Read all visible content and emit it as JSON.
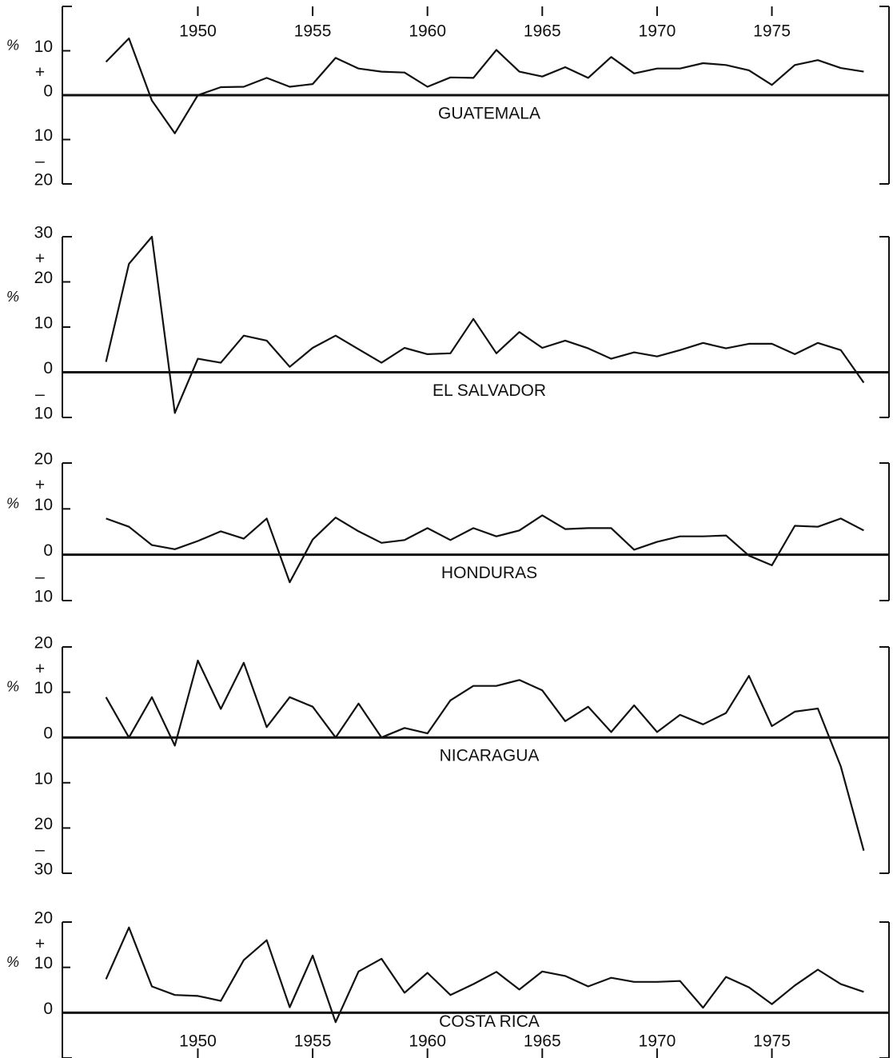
{
  "chart_data": [
    {
      "type": "line",
      "title": "GUATEMALA",
      "ylabel": "%",
      "sign_labels": [
        "+",
        "–"
      ],
      "xaxis_position": "top",
      "xlim": [
        1944.1,
        1980.1
      ],
      "xticks": [
        1950,
        1955,
        1960,
        1965,
        1970,
        1975
      ],
      "ylim": [
        -20,
        20
      ],
      "yticks": [
        {
          "value": -20,
          "label": "20"
        },
        {
          "value": -10,
          "label": "10"
        },
        0,
        10
      ],
      "x": [
        1946,
        1947,
        1948,
        1949,
        1950,
        1951,
        1952,
        1953,
        1954,
        1955,
        1956,
        1957,
        1958,
        1959,
        1960,
        1961,
        1962,
        1963,
        1964,
        1965,
        1966,
        1967,
        1968,
        1969,
        1970,
        1971,
        1972,
        1973,
        1974,
        1975,
        1976,
        1977,
        1978,
        1979
      ],
      "series": [
        {
          "color": "#111111",
          "values": [
            7.5,
            12.8,
            -1.2,
            -8.6,
            0,
            1.8,
            1.9,
            3.9,
            1.9,
            2.5,
            8.4,
            6,
            5.3,
            5.1,
            1.9,
            4,
            3.9,
            10.2,
            5.3,
            4.2,
            6.3,
            3.9,
            8.6,
            4.9,
            6,
            6,
            7.2,
            6.8,
            5.6,
            2.3,
            6.8,
            7.9,
            6.1,
            5.3
          ]
        }
      ]
    },
    {
      "type": "line",
      "title": "EL SALVADOR",
      "ylabel": "%",
      "sign_labels": [
        "+",
        "–"
      ],
      "xlim": [
        1944.1,
        1980.1
      ],
      "ylim": [
        -10,
        30
      ],
      "yticks": [
        {
          "value": -10,
          "label": "10"
        },
        0,
        10,
        20,
        30
      ],
      "x": [
        1946,
        1947,
        1948,
        1949,
        1950,
        1951,
        1952,
        1953,
        1954,
        1955,
        1956,
        1957,
        1958,
        1959,
        1960,
        1961,
        1962,
        1963,
        1964,
        1965,
        1966,
        1967,
        1968,
        1969,
        1970,
        1971,
        1972,
        1973,
        1974,
        1975,
        1976,
        1977,
        1978,
        1979
      ],
      "series": [
        {
          "color": "#111111",
          "values": [
            2.3,
            24,
            30,
            -9,
            3,
            2.1,
            8.1,
            7,
            1.2,
            5.4,
            8.1,
            5.1,
            2.1,
            5.4,
            4,
            4.2,
            11.8,
            4.2,
            8.9,
            5.4,
            7,
            5.3,
            3,
            4.4,
            3.5,
            4.9,
            6.5,
            5.3,
            6.3,
            6.3,
            4,
            6.5,
            4.9,
            -2.3
          ]
        }
      ]
    },
    {
      "type": "line",
      "title": "HONDURAS",
      "ylabel": "%",
      "sign_labels": [
        "+",
        "–"
      ],
      "xlim": [
        1944.1,
        1980.1
      ],
      "ylim": [
        -10,
        20
      ],
      "yticks": [
        {
          "value": -10,
          "label": "10"
        },
        0,
        10,
        20
      ],
      "x": [
        1946,
        1947,
        1948,
        1949,
        1950,
        1951,
        1952,
        1953,
        1954,
        1955,
        1956,
        1957,
        1958,
        1959,
        1960,
        1961,
        1962,
        1963,
        1964,
        1965,
        1966,
        1967,
        1968,
        1969,
        1970,
        1971,
        1972,
        1973,
        1974,
        1975,
        1976,
        1977,
        1978,
        1979
      ],
      "series": [
        {
          "color": "#111111",
          "values": [
            7.9,
            6.1,
            2.1,
            1.2,
            3,
            5.1,
            3.5,
            7.9,
            -6,
            3.3,
            8.1,
            5.1,
            2.6,
            3.2,
            5.8,
            3.2,
            5.8,
            4,
            5.3,
            8.6,
            5.6,
            5.8,
            5.8,
            1.1,
            2.8,
            4,
            4,
            4.2,
            -0.2,
            -2.3,
            6.3,
            6.1,
            7.9,
            5.3
          ]
        }
      ]
    },
    {
      "type": "line",
      "title": "NICARAGUA",
      "ylabel": "%",
      "sign_labels": [
        "+",
        "–"
      ],
      "xlim": [
        1944.1,
        1980.1
      ],
      "ylim": [
        -30,
        20
      ],
      "yticks": [
        {
          "value": -30,
          "label": "30"
        },
        {
          "value": -20,
          "label": "20"
        },
        {
          "value": -10,
          "label": "10"
        },
        0,
        10,
        20
      ],
      "x": [
        1946,
        1947,
        1948,
        1949,
        1950,
        1951,
        1952,
        1953,
        1954,
        1955,
        1956,
        1957,
        1958,
        1959,
        1960,
        1961,
        1962,
        1963,
        1964,
        1965,
        1966,
        1967,
        1968,
        1969,
        1970,
        1971,
        1972,
        1973,
        1974,
        1975,
        1976,
        1977,
        1978,
        1979
      ],
      "series": [
        {
          "color": "#111111",
          "values": [
            8.9,
            0,
            8.9,
            -1.8,
            17,
            6.3,
            16.5,
            2.3,
            8.9,
            6.8,
            0,
            7.5,
            0,
            2.1,
            0.9,
            8.2,
            11.4,
            11.4,
            12.7,
            10.4,
            3.6,
            6.8,
            1.2,
            7.1,
            1.2,
            5,
            2.9,
            5.4,
            13.6,
            2.5,
            5.7,
            6.4,
            -6.4,
            -25
          ]
        }
      ]
    },
    {
      "type": "line",
      "title": "COSTA RICA",
      "ylabel": "%",
      "sign_labels": [
        "+"
      ],
      "xaxis_position": "bottom",
      "xlim": [
        1944.1,
        1980.1
      ],
      "xticks": [
        1950,
        1955,
        1960,
        1965,
        1970,
        1975
      ],
      "ylim": [
        -10,
        20
      ],
      "yticks": [
        0,
        10,
        20
      ],
      "x": [
        1946,
        1947,
        1948,
        1949,
        1950,
        1951,
        1952,
        1953,
        1954,
        1955,
        1956,
        1957,
        1958,
        1959,
        1960,
        1961,
        1962,
        1963,
        1964,
        1965,
        1966,
        1967,
        1968,
        1969,
        1970,
        1971,
        1972,
        1973,
        1974,
        1975,
        1976,
        1977,
        1978,
        1979
      ],
      "series": [
        {
          "color": "#111111",
          "values": [
            7.4,
            18.8,
            5.8,
            3.9,
            3.7,
            2.6,
            11.6,
            16,
            1.2,
            12.6,
            -2.1,
            9.1,
            11.9,
            4.4,
            8.8,
            3.9,
            6.3,
            9,
            5.1,
            9.1,
            8.1,
            5.8,
            7.7,
            6.8,
            6.8,
            7,
            1.1,
            7.9,
            5.6,
            1.9,
            6,
            9.5,
            6.3,
            4.6
          ]
        }
      ]
    }
  ]
}
